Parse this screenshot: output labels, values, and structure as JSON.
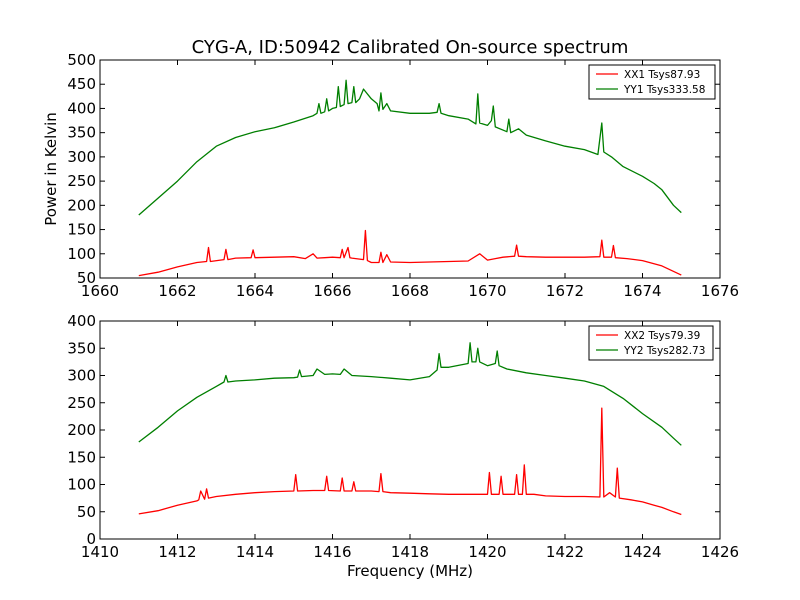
{
  "figure": {
    "title": "CYG-A, ID:50942 Calibrated On-source spectrum"
  },
  "chart_data": [
    {
      "type": "line",
      "ylabel": "Power in Kelvin",
      "xlabel": "",
      "xlim": [
        1660,
        1676
      ],
      "ylim": [
        50,
        500
      ],
      "xticks": [
        1660,
        1662,
        1664,
        1666,
        1668,
        1670,
        1672,
        1674,
        1676
      ],
      "yticks": [
        50,
        100,
        150,
        200,
        250,
        300,
        350,
        400,
        450,
        500
      ],
      "legend_position": "top-right",
      "grid": false,
      "series": [
        {
          "name": "XX1 Tsys87.93",
          "color": "#ff0000",
          "x": [
            1661.0,
            1661.5,
            1662.0,
            1662.5,
            1662.75,
            1662.8,
            1662.85,
            1663.2,
            1663.25,
            1663.3,
            1663.5,
            1663.9,
            1663.95,
            1664.0,
            1664.5,
            1665.0,
            1665.3,
            1665.5,
            1665.6,
            1665.8,
            1666.0,
            1666.2,
            1666.25,
            1666.3,
            1666.4,
            1666.45,
            1666.5,
            1666.8,
            1666.85,
            1666.9,
            1667.0,
            1667.2,
            1667.25,
            1667.3,
            1667.4,
            1667.5,
            1668.0,
            1668.5,
            1669.0,
            1669.5,
            1669.8,
            1670.0,
            1670.2,
            1670.4,
            1670.7,
            1670.75,
            1670.8,
            1671.0,
            1671.5,
            1672.0,
            1672.5,
            1672.9,
            1672.95,
            1673.0,
            1673.2,
            1673.25,
            1673.3,
            1673.6,
            1674.0,
            1674.5,
            1675.0
          ],
          "values": [
            55,
            62,
            73,
            82,
            84,
            113,
            84,
            88,
            109,
            88,
            91,
            92,
            108,
            92,
            93,
            94,
            90,
            100,
            91,
            92,
            93,
            92,
            109,
            92,
            113,
            92,
            91,
            88,
            148,
            86,
            82,
            82,
            103,
            82,
            98,
            83,
            82,
            83,
            84,
            85,
            100,
            87,
            90,
            93,
            95,
            118,
            95,
            94,
            93,
            93,
            93,
            94,
            128,
            93,
            93,
            117,
            92,
            90,
            86,
            75,
            56
          ]
        },
        {
          "name": "YY1 Tsys333.58",
          "color": "#007f00",
          "x": [
            1661.0,
            1661.5,
            1662.0,
            1662.5,
            1663.0,
            1663.5,
            1664.0,
            1664.5,
            1665.0,
            1665.5,
            1665.6,
            1665.65,
            1665.7,
            1665.8,
            1665.85,
            1665.9,
            1666.0,
            1666.1,
            1666.15,
            1666.2,
            1666.3,
            1666.35,
            1666.4,
            1666.5,
            1666.55,
            1666.6,
            1666.7,
            1666.8,
            1667.0,
            1667.15,
            1667.2,
            1667.25,
            1667.3,
            1667.4,
            1667.5,
            1668.0,
            1668.5,
            1668.7,
            1668.75,
            1668.8,
            1669.0,
            1669.5,
            1669.7,
            1669.75,
            1669.8,
            1670.0,
            1670.1,
            1670.15,
            1670.2,
            1670.5,
            1670.55,
            1670.6,
            1670.8,
            1671.0,
            1671.5,
            1672.0,
            1672.5,
            1672.85,
            1672.95,
            1673.0,
            1673.2,
            1673.5,
            1674.0,
            1674.3,
            1674.5,
            1674.8,
            1675.0
          ],
          "values": [
            180,
            215,
            250,
            290,
            322,
            340,
            352,
            360,
            372,
            385,
            390,
            410,
            390,
            393,
            420,
            395,
            400,
            402,
            445,
            404,
            408,
            458,
            410,
            412,
            445,
            412,
            420,
            440,
            420,
            410,
            395,
            432,
            398,
            410,
            395,
            390,
            390,
            392,
            410,
            390,
            385,
            378,
            368,
            430,
            370,
            365,
            375,
            405,
            362,
            352,
            378,
            350,
            358,
            345,
            333,
            322,
            315,
            305,
            370,
            310,
            300,
            280,
            260,
            245,
            232,
            200,
            185
          ]
        }
      ]
    },
    {
      "type": "line",
      "ylabel": "",
      "xlabel": "Frequency (MHz)",
      "xlim": [
        1410,
        1426
      ],
      "ylim": [
        0,
        400
      ],
      "xticks": [
        1410,
        1412,
        1414,
        1416,
        1418,
        1420,
        1422,
        1424,
        1426
      ],
      "yticks": [
        0,
        50,
        100,
        150,
        200,
        250,
        300,
        350,
        400
      ],
      "legend_position": "top-right",
      "grid": false,
      "series": [
        {
          "name": "XX2 Tsys79.39",
          "color": "#ff0000",
          "x": [
            1411.0,
            1411.5,
            1412.0,
            1412.5,
            1412.55,
            1412.6,
            1412.7,
            1412.75,
            1412.8,
            1413.0,
            1413.5,
            1414.0,
            1414.5,
            1415.0,
            1415.05,
            1415.1,
            1415.5,
            1415.8,
            1415.85,
            1415.9,
            1416.2,
            1416.25,
            1416.3,
            1416.5,
            1416.55,
            1416.6,
            1416.9,
            1417.0,
            1417.2,
            1417.25,
            1417.3,
            1417.5,
            1418.0,
            1418.5,
            1419.0,
            1419.5,
            1420.0,
            1420.05,
            1420.1,
            1420.3,
            1420.35,
            1420.4,
            1420.7,
            1420.75,
            1420.8,
            1420.9,
            1420.95,
            1421.0,
            1421.2,
            1421.5,
            1422.0,
            1422.5,
            1422.9,
            1422.95,
            1423.0,
            1423.15,
            1423.3,
            1423.35,
            1423.4,
            1423.7,
            1424.0,
            1424.3,
            1424.5,
            1424.8,
            1425.0
          ],
          "values": [
            46,
            52,
            62,
            70,
            72,
            88,
            73,
            92,
            75,
            78,
            82,
            85,
            87,
            88,
            118,
            88,
            89,
            89,
            115,
            89,
            88,
            112,
            88,
            88,
            105,
            88,
            88,
            88,
            87,
            120,
            87,
            85,
            84,
            83,
            82,
            82,
            82,
            122,
            82,
            82,
            115,
            82,
            82,
            118,
            82,
            82,
            136,
            82,
            82,
            79,
            78,
            78,
            77,
            240,
            77,
            85,
            77,
            130,
            75,
            72,
            68,
            62,
            58,
            50,
            45
          ]
        },
        {
          "name": "YY2 Tsys282.73",
          "color": "#007f00",
          "x": [
            1411.0,
            1411.5,
            1412.0,
            1412.5,
            1413.0,
            1413.2,
            1413.25,
            1413.3,
            1413.5,
            1414.0,
            1414.5,
            1415.0,
            1415.1,
            1415.15,
            1415.2,
            1415.5,
            1415.6,
            1415.8,
            1416.0,
            1416.2,
            1416.3,
            1416.5,
            1417.0,
            1417.5,
            1418.0,
            1418.5,
            1418.7,
            1418.75,
            1418.8,
            1419.0,
            1419.2,
            1419.5,
            1419.55,
            1419.6,
            1419.7,
            1419.75,
            1419.8,
            1420.0,
            1420.2,
            1420.25,
            1420.3,
            1420.5,
            1421.0,
            1421.5,
            1422.0,
            1422.5,
            1423.0,
            1423.5,
            1424.0,
            1424.5,
            1424.8,
            1425.0
          ],
          "values": [
            178,
            205,
            235,
            260,
            280,
            288,
            300,
            288,
            290,
            292,
            295,
            296,
            297,
            310,
            298,
            300,
            312,
            302,
            303,
            302,
            312,
            300,
            298,
            295,
            292,
            298,
            310,
            340,
            315,
            315,
            318,
            322,
            360,
            325,
            325,
            350,
            325,
            318,
            322,
            345,
            318,
            312,
            305,
            300,
            295,
            290,
            280,
            258,
            230,
            205,
            185,
            172
          ]
        }
      ]
    }
  ]
}
